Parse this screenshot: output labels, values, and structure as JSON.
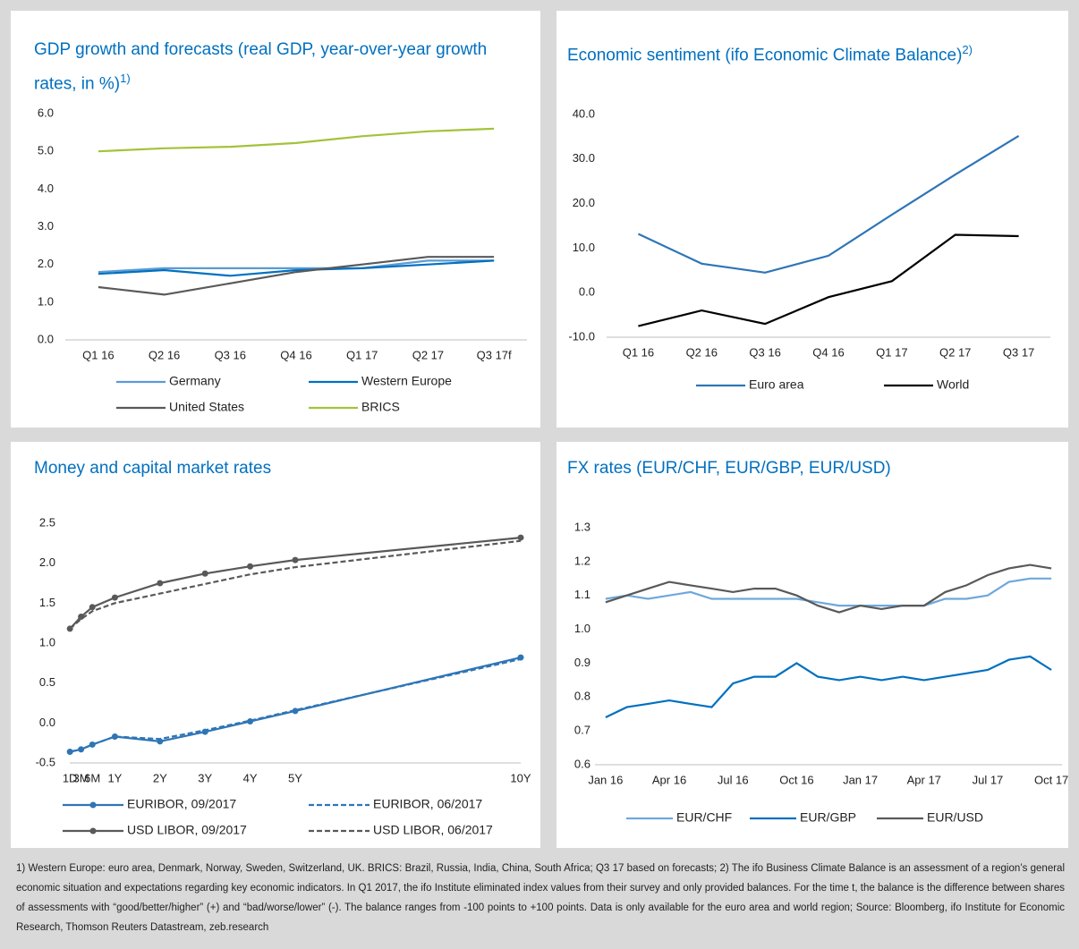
{
  "chart_data": [
    {
      "type": "line",
      "title": "GDP growth and forecasts (real GDP, year-over-year growth rates, in %)",
      "title_sup": "1)",
      "categories": [
        "Q1 16",
        "Q2 16",
        "Q3 16",
        "Q4 16",
        "Q1 17",
        "Q2 17",
        "Q3 17f"
      ],
      "ylim": [
        0,
        6
      ],
      "yticks": [
        {
          "value": 0,
          "label": "0.0"
        },
        {
          "value": 1,
          "label": "1.0"
        },
        {
          "value": 2,
          "label": "2.0"
        },
        {
          "value": 3,
          "label": "3.0"
        },
        {
          "value": 4,
          "label": "4.0"
        },
        {
          "value": 5,
          "label": "5.0"
        },
        {
          "value": 6,
          "label": "6.0"
        }
      ],
      "series": [
        {
          "name": "Germany",
          "color": "#5b9bd5",
          "values": [
            1.8,
            1.9,
            1.9,
            1.9,
            1.9,
            2.1,
            2.1
          ]
        },
        {
          "name": "Western Europe",
          "color": "#0070c0",
          "values": [
            1.75,
            1.85,
            1.7,
            1.85,
            1.9,
            2.0,
            2.1
          ]
        },
        {
          "name": "United States",
          "color": "#595959",
          "values": [
            1.4,
            1.2,
            1.5,
            1.8,
            2.0,
            2.2,
            2.2
          ]
        },
        {
          "name": "BRICS",
          "color": "#a4c23a",
          "values": [
            5.0,
            5.08,
            5.12,
            5.22,
            5.4,
            5.53,
            5.6
          ]
        }
      ]
    },
    {
      "type": "line",
      "title": "Economic sentiment (ifo Economic Climate Balance)",
      "title_sup": "2)",
      "categories": [
        "Q1 16",
        "Q2 16",
        "Q3 16",
        "Q4 16",
        "Q1 17",
        "Q2 17",
        "Q3 17"
      ],
      "ylim": [
        -10,
        40
      ],
      "yticks": [
        {
          "value": -10,
          "label": "-10.0"
        },
        {
          "value": 0,
          "label": "0.0"
        },
        {
          "value": 10,
          "label": "10.0"
        },
        {
          "value": 20,
          "label": "20.0"
        },
        {
          "value": 30,
          "label": "30.0"
        },
        {
          "value": 40,
          "label": "40.0"
        }
      ],
      "series": [
        {
          "name": "Euro area",
          "color": "#2e75b6",
          "values": [
            13.2,
            6.5,
            4.5,
            8.3,
            17.5,
            26.5,
            35.2
          ]
        },
        {
          "name": "World",
          "color": "#000000",
          "values": [
            -7.5,
            -4,
            -7,
            -1,
            2.6,
            13,
            12.7
          ]
        }
      ]
    },
    {
      "type": "line",
      "title": "Money and capital market rates",
      "x": [
        0.003,
        0.25,
        0.5,
        1,
        2,
        3,
        4,
        5,
        10
      ],
      "xlim": [
        0,
        10
      ],
      "xticks": [
        {
          "value": 0.003,
          "label": "1D"
        },
        {
          "value": 0.25,
          "label": "3M"
        },
        {
          "value": 0.5,
          "label": "6M"
        },
        {
          "value": 1,
          "label": "1Y"
        },
        {
          "value": 2,
          "label": "2Y"
        },
        {
          "value": 3,
          "label": "3Y"
        },
        {
          "value": 4,
          "label": "4Y"
        },
        {
          "value": 5,
          "label": "5Y"
        },
        {
          "value": 10,
          "label": "10Y"
        }
      ],
      "ylim": [
        -0.5,
        2.5
      ],
      "yticks": [
        -0.5,
        {
          "value": 0,
          "label": "0.0"
        },
        0.5,
        {
          "value": 1,
          "label": "1.0"
        },
        1.5,
        {
          "value": 2,
          "label": "2.0"
        },
        2.5
      ],
      "series": [
        {
          "name": "EURIBOR, 09/2017",
          "color": "#2e75b6",
          "marker": true,
          "values": [
            -0.36,
            -0.33,
            -0.27,
            -0.17,
            -0.23,
            -0.11,
            0.02,
            0.15,
            0.82
          ]
        },
        {
          "name": "EURIBOR, 06/2017",
          "color": "#2e75b6",
          "dash": true,
          "values": [
            -0.36,
            -0.33,
            -0.27,
            -0.17,
            -0.2,
            -0.09,
            0.03,
            0.16,
            0.8
          ]
        },
        {
          "name": "USD LIBOR, 09/2017",
          "color": "#595959",
          "marker": true,
          "values": [
            1.18,
            1.33,
            1.45,
            1.57,
            1.75,
            1.87,
            1.96,
            2.04,
            2.32
          ]
        },
        {
          "name": "USD LIBOR, 06/2017",
          "color": "#595959",
          "dash": true,
          "values": [
            1.18,
            1.3,
            1.4,
            1.5,
            1.62,
            1.74,
            1.86,
            1.95,
            2.28
          ]
        }
      ]
    },
    {
      "type": "line",
      "title": "FX rates (EUR/CHF, EUR/GBP, EUR/USD)",
      "categories": [
        "Jan 16",
        null,
        null,
        "Apr 16",
        null,
        null,
        "Jul 16",
        null,
        null,
        "Oct 16",
        null,
        null,
        "Jan 17",
        null,
        null,
        "Apr 17",
        null,
        null,
        "Jul 17",
        null,
        null,
        "Oct 17"
      ],
      "ylim": [
        0.6,
        1.3
      ],
      "yticks": [
        0.6,
        0.7,
        0.8,
        0.9,
        {
          "value": 1,
          "label": "1.0"
        },
        1.1,
        1.2,
        1.3
      ],
      "series": [
        {
          "name": "EUR/CHF",
          "color": "#6fa8dc",
          "values": [
            1.09,
            1.1,
            1.09,
            1.1,
            1.11,
            1.09,
            1.09,
            1.09,
            1.09,
            1.09,
            1.08,
            1.07,
            1.07,
            1.07,
            1.07,
            1.07,
            1.09,
            1.09,
            1.1,
            1.14,
            1.15,
            1.15
          ]
        },
        {
          "name": "EUR/GBP",
          "color": "#0070c0",
          "values": [
            0.74,
            0.77,
            0.78,
            0.79,
            0.78,
            0.77,
            0.84,
            0.86,
            0.86,
            0.9,
            0.86,
            0.85,
            0.86,
            0.85,
            0.86,
            0.85,
            0.86,
            0.87,
            0.88,
            0.91,
            0.92,
            0.88
          ]
        },
        {
          "name": "EUR/USD",
          "color": "#595959",
          "values": [
            1.08,
            1.1,
            1.12,
            1.14,
            1.13,
            1.12,
            1.11,
            1.12,
            1.12,
            1.1,
            1.07,
            1.05,
            1.07,
            1.06,
            1.07,
            1.07,
            1.11,
            1.13,
            1.16,
            1.18,
            1.19,
            1.18
          ]
        }
      ]
    }
  ],
  "footnote": "1) Western Europe: euro area, Denmark, Norway, Sweden, Switzerland, UK. BRICS: Brazil, Russia, India, China, South Africa; Q3 17 based on forecasts; 2) The ifo Business Climate Balance is an assessment of a region’s general economic situation and expectations regarding key economic indicators. In Q1 2017, the ifo Institute eliminated index values from their survey and only provided balances. For the time t, the balance is the difference between shares of assessments with “good/better/higher” (+) and “bad/worse/lower” (-). The balance ranges from -100 points to +100 points. Data is only available for the euro area and world region; Source: Bloomberg, ifo Institute for Economic Research, Thomson Reuters Datastream, zeb.research"
}
